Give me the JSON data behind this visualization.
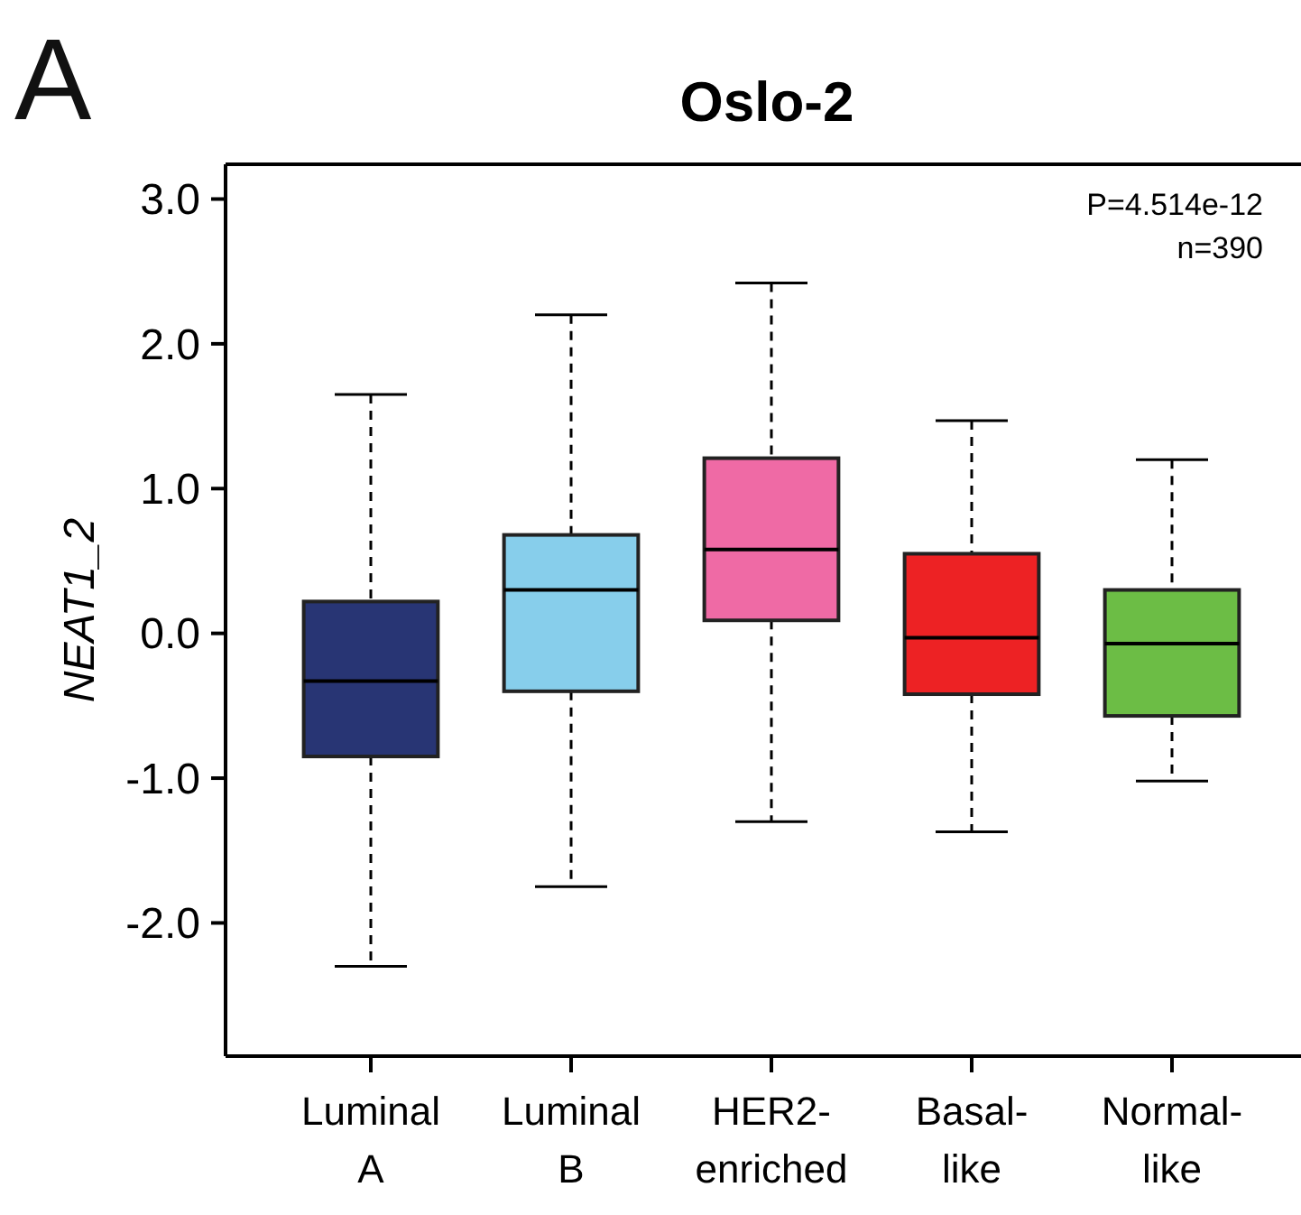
{
  "chart_data": {
    "type": "box",
    "title": "Oslo-2",
    "ylabel": "NEAT1_2",
    "categories": [
      "Luminal\nA",
      "Luminal\nB",
      "HER2-\nenriched",
      "Basal-\nlike",
      "Normal-\nlike"
    ],
    "colors": [
      "#283574",
      "#87ceeb",
      "#ef6aa5",
      "#ed2224",
      "#6cbd45"
    ],
    "boxes": [
      {
        "low": -2.3,
        "q1": -0.85,
        "median": -0.33,
        "q3": 0.22,
        "high": 1.65
      },
      {
        "low": -1.75,
        "q1": -0.4,
        "median": 0.3,
        "q3": 0.68,
        "high": 2.2
      },
      {
        "low": -1.3,
        "q1": 0.09,
        "median": 0.58,
        "q3": 1.21,
        "high": 2.42
      },
      {
        "low": -1.37,
        "q1": -0.42,
        "median": -0.03,
        "q3": 0.55,
        "high": 1.47
      },
      {
        "low": -1.02,
        "q1": -0.57,
        "median": -0.07,
        "q3": 0.3,
        "high": 1.2
      }
    ],
    "ylim": [
      -2.92,
      3.24
    ],
    "yticks": [
      {
        "value": -2,
        "label": "-2.0"
      },
      {
        "value": -1,
        "label": "-1.0"
      },
      {
        "value": 0,
        "label": "0.0"
      },
      {
        "value": 1,
        "label": "1.0"
      },
      {
        "value": 2,
        "label": "2.0"
      },
      {
        "value": 3,
        "label": "3.0"
      }
    ],
    "annotations": [
      "A",
      "P=4.514e-12",
      "n=390"
    ],
    "grid": false
  }
}
